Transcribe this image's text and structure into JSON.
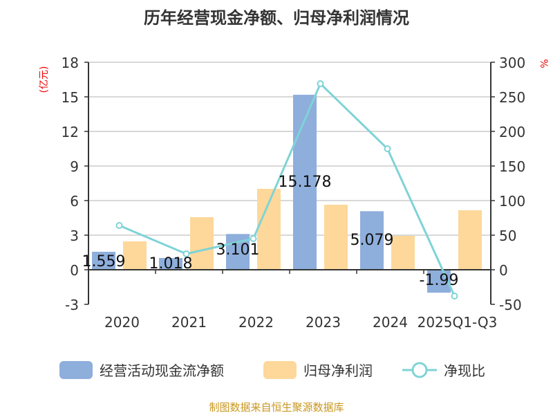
{
  "chart_data": {
    "type": "bar",
    "title": "历年经营现金净额、归母净利润情况",
    "categories": [
      "2020",
      "2021",
      "2022",
      "2023",
      "2024",
      "2025Q1-Q3"
    ],
    "series": [
      {
        "name": "经营活动现金流净额",
        "type": "bar",
        "axis": "left",
        "color": "#8eaedc",
        "values": [
          1.559,
          1.018,
          3.101,
          15.178,
          5.079,
          -1.99
        ],
        "labels": [
          "1.559",
          "1.018",
          "3.101",
          "15.178",
          "5.079",
          "-1.99"
        ]
      },
      {
        "name": "归母净利润",
        "type": "bar",
        "axis": "left",
        "color": "#fdd89a",
        "values": [
          2.46,
          4.56,
          7.02,
          5.64,
          2.94,
          5.16
        ]
      },
      {
        "name": "净现比",
        "type": "line",
        "axis": "right",
        "color": "#7fd3d6",
        "values": [
          64,
          23,
          45,
          269,
          175,
          -38
        ]
      }
    ],
    "left_axis": {
      "label": "(亿元)",
      "ylim": [
        -3,
        18
      ],
      "ticks": [
        "-3",
        "0",
        "3",
        "6",
        "9",
        "12",
        "15",
        "18"
      ]
    },
    "right_axis": {
      "label": "%",
      "ylim": [
        -50,
        300
      ],
      "ticks": [
        "-50",
        "0",
        "50",
        "100",
        "150",
        "200",
        "250",
        "300"
      ]
    },
    "grid": true,
    "legend": "bottom"
  },
  "source": "制图数据来自恒生聚源数据库"
}
